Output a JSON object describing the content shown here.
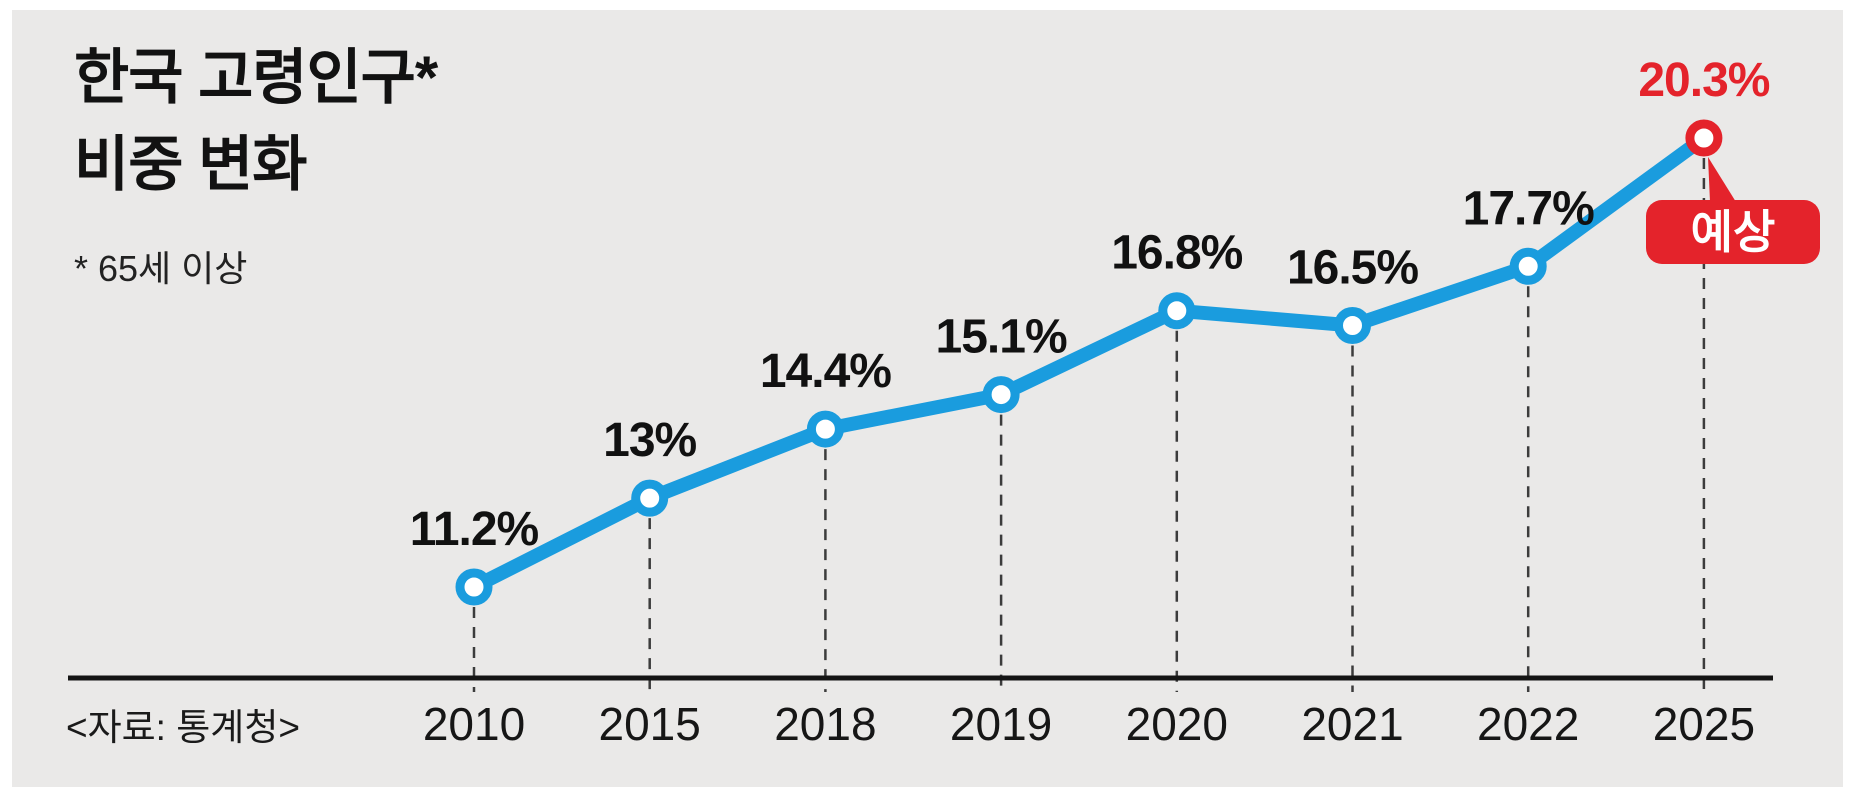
{
  "header": {
    "title_line1": "한국 고령인구*",
    "title_line2": "비중 변화",
    "subtitle": "* 65세 이상"
  },
  "source": "<자료: 통계청>",
  "chart_data": {
    "type": "line",
    "title": "한국 고령인구 비중 변화",
    "subtitle_note": "* 65세 이상",
    "source": "<자료: 통계청>",
    "categories": [
      "2010",
      "2015",
      "2018",
      "2019",
      "2020",
      "2021",
      "2022",
      "2025"
    ],
    "values": [
      11.2,
      13,
      14.4,
      15.1,
      16.8,
      16.5,
      17.7,
      20.3
    ],
    "point_labels": [
      "11.2%",
      "13%",
      "14.4%",
      "15.1%",
      "16.8%",
      "16.5%",
      "17.7%",
      "20.3%"
    ],
    "forecast_index": 7,
    "forecast_label": "예상",
    "ylim": [
      10,
      21
    ],
    "grid": false,
    "legend": "none",
    "colors": {
      "line": "#1A9CDE",
      "accent_red": "#E4232B",
      "marker_fill": "#FFFFFF",
      "label": "#111111",
      "axis": "#141414",
      "guide": "#3c3c3c",
      "background": "#EAE9E8",
      "bubble_text": "#FFFFFF"
    }
  }
}
